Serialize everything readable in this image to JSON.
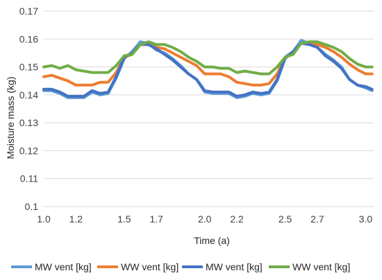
{
  "chart_data": {
    "type": "line",
    "title": "",
    "xlabel": "Time (a)",
    "ylabel": "Moisture mass (kg)",
    "xlim": [
      1.0,
      3.05
    ],
    "ylim": [
      0.1,
      0.17
    ],
    "x_ticks": [
      1.0,
      1.2,
      1.5,
      1.7,
      2.0,
      2.2,
      2.5,
      2.7,
      3.0
    ],
    "x_tick_labels": [
      "1.0",
      "1.2",
      "1.5",
      "1.7",
      "2.0",
      "2.2",
      "2.5",
      "2.7",
      "3.0"
    ],
    "y_ticks": [
      0.1,
      0.11,
      0.12,
      0.13,
      0.14,
      0.15,
      0.16,
      0.17
    ],
    "y_tick_labels": [
      "0.1",
      "0.11",
      "0.12",
      "0.13",
      "0.14",
      "0.15",
      "0.16",
      "0.17"
    ],
    "grid": "horizontal",
    "legend_position": "bottom",
    "series": [
      {
        "name": "MW vent [kg]",
        "color": "#5b9bd5",
        "x": [
          1.0,
          1.05,
          1.1,
          1.15,
          1.2,
          1.25,
          1.3,
          1.35,
          1.4,
          1.45,
          1.5,
          1.55,
          1.6,
          1.65,
          1.7,
          1.75,
          1.8,
          1.85,
          1.9,
          1.95,
          2.0,
          2.05,
          2.1,
          2.15,
          2.2,
          2.25,
          2.3,
          2.35,
          2.4,
          2.45,
          2.5,
          2.55,
          2.6,
          2.65,
          2.7,
          2.75,
          2.8,
          2.85,
          2.9,
          2.95,
          3.0,
          3.04
        ],
        "y": [
          0.1415,
          0.1415,
          0.1405,
          0.139,
          0.139,
          0.139,
          0.141,
          0.14,
          0.1405,
          0.146,
          0.153,
          0.1555,
          0.159,
          0.1585,
          0.156,
          0.155,
          0.153,
          0.1505,
          0.1475,
          0.1455,
          0.141,
          0.1405,
          0.1405,
          0.1405,
          0.139,
          0.1395,
          0.1405,
          0.14,
          0.1405,
          0.145,
          0.153,
          0.1555,
          0.1595,
          0.1585,
          0.157,
          0.1545,
          0.1525,
          0.15,
          0.1455,
          0.1435,
          0.1425,
          0.1415
        ]
      },
      {
        "name": "WW vent [kg]",
        "color": "#ed7d31",
        "x": [
          1.0,
          1.05,
          1.1,
          1.15,
          1.2,
          1.25,
          1.3,
          1.35,
          1.4,
          1.45,
          1.5,
          1.55,
          1.6,
          1.65,
          1.7,
          1.75,
          1.8,
          1.85,
          1.9,
          1.95,
          2.0,
          2.05,
          2.1,
          2.15,
          2.2,
          2.25,
          2.3,
          2.35,
          2.4,
          2.45,
          2.5,
          2.55,
          2.6,
          2.65,
          2.7,
          2.75,
          2.8,
          2.85,
          2.9,
          2.95,
          3.0,
          3.04
        ],
        "y": [
          0.1465,
          0.147,
          0.146,
          0.145,
          0.1435,
          0.1435,
          0.1435,
          0.1445,
          0.1445,
          0.148,
          0.1535,
          0.1545,
          0.158,
          0.158,
          0.157,
          0.1565,
          0.155,
          0.1535,
          0.152,
          0.1505,
          0.1475,
          0.1475,
          0.1475,
          0.1465,
          0.1445,
          0.144,
          0.1435,
          0.1435,
          0.144,
          0.1475,
          0.1535,
          0.155,
          0.1585,
          0.158,
          0.158,
          0.157,
          0.1555,
          0.1535,
          0.151,
          0.149,
          0.1475,
          0.1475
        ]
      },
      {
        "name": "MW vent [kg]",
        "color": "#4472c4",
        "x": [
          1.0,
          1.05,
          1.1,
          1.15,
          1.2,
          1.25,
          1.3,
          1.35,
          1.4,
          1.45,
          1.5,
          1.55,
          1.6,
          1.65,
          1.7,
          1.75,
          1.8,
          1.85,
          1.9,
          1.95,
          2.0,
          2.05,
          2.1,
          2.15,
          2.2,
          2.25,
          2.3,
          2.35,
          2.4,
          2.45,
          2.5,
          2.55,
          2.6,
          2.65,
          2.7,
          2.75,
          2.8,
          2.85,
          2.9,
          2.95,
          3.0,
          3.04
        ],
        "y": [
          0.142,
          0.142,
          0.141,
          0.1395,
          0.1395,
          0.1395,
          0.1415,
          0.1405,
          0.141,
          0.1465,
          0.1535,
          0.155,
          0.158,
          0.158,
          0.1565,
          0.1545,
          0.1525,
          0.15,
          0.1475,
          0.1455,
          0.1415,
          0.141,
          0.141,
          0.141,
          0.1395,
          0.14,
          0.141,
          0.1405,
          0.141,
          0.1455,
          0.1535,
          0.1555,
          0.1585,
          0.158,
          0.157,
          0.154,
          0.152,
          0.1495,
          0.1455,
          0.1435,
          0.143,
          0.142
        ]
      },
      {
        "name": "WW vent [kg]",
        "color": "#70ad47",
        "x": [
          1.0,
          1.05,
          1.1,
          1.15,
          1.2,
          1.25,
          1.3,
          1.35,
          1.4,
          1.45,
          1.5,
          1.55,
          1.6,
          1.65,
          1.7,
          1.75,
          1.8,
          1.85,
          1.9,
          1.95,
          2.0,
          2.05,
          2.1,
          2.15,
          2.2,
          2.25,
          2.3,
          2.35,
          2.4,
          2.45,
          2.5,
          2.55,
          2.6,
          2.65,
          2.7,
          2.75,
          2.8,
          2.85,
          2.9,
          2.95,
          3.0,
          3.04
        ],
        "y": [
          0.15,
          0.1505,
          0.1495,
          0.1505,
          0.149,
          0.1485,
          0.148,
          0.148,
          0.148,
          0.1505,
          0.154,
          0.1545,
          0.158,
          0.159,
          0.158,
          0.158,
          0.157,
          0.1555,
          0.1535,
          0.152,
          0.15,
          0.15,
          0.1495,
          0.1495,
          0.148,
          0.1485,
          0.148,
          0.1475,
          0.1475,
          0.15,
          0.1535,
          0.1545,
          0.1585,
          0.159,
          0.159,
          0.158,
          0.157,
          0.1555,
          0.153,
          0.151,
          0.15,
          0.15
        ]
      }
    ]
  }
}
